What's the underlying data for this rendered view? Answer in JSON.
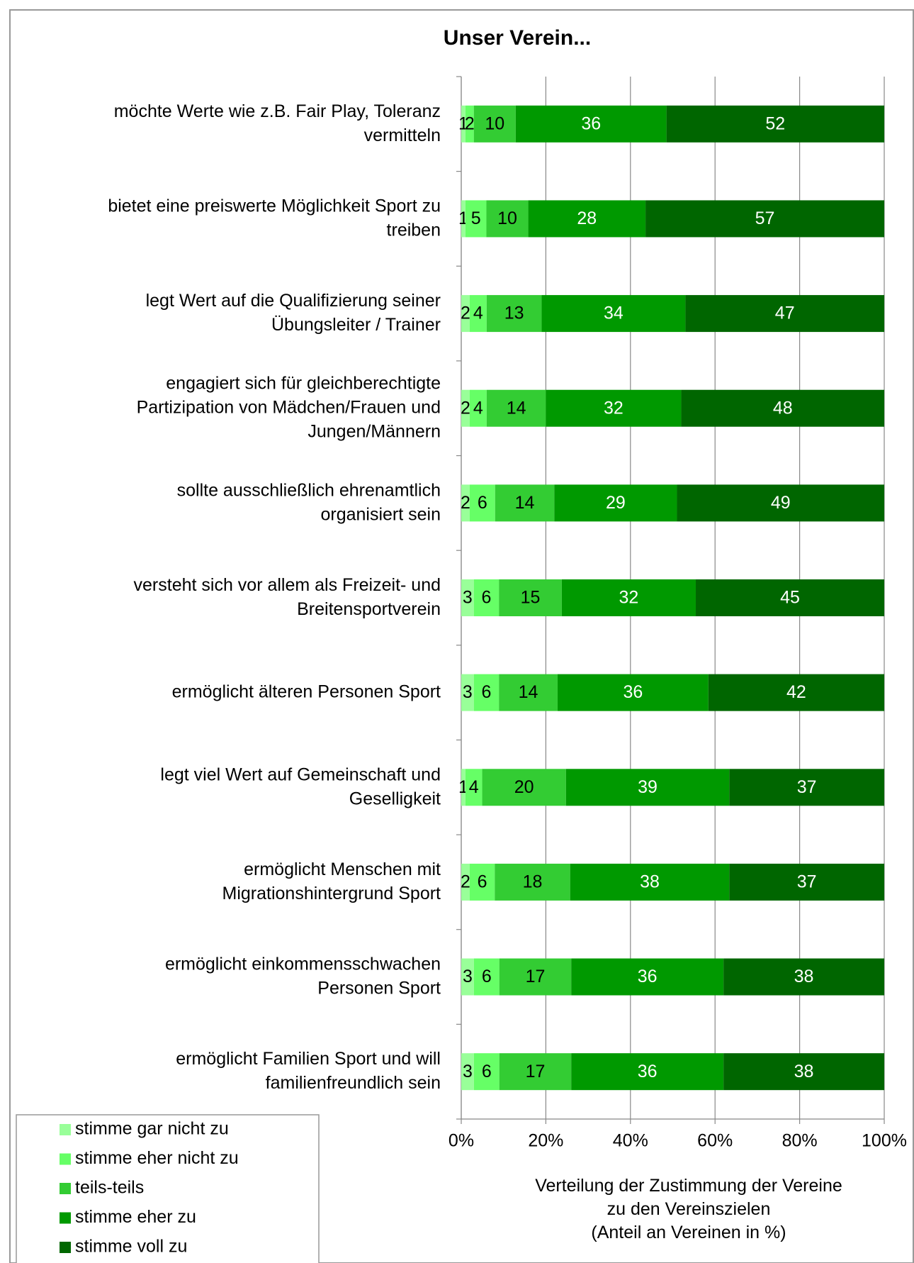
{
  "chart_data": {
    "type": "stacked_bar_100",
    "title": "Unser Verein...",
    "categories": [
      "möchte Werte wie z.B. Fair Play, Toleranz\nvermitteln",
      "bietet eine preiswerte Möglichkeit Sport zu\ntreiben",
      "legt Wert auf die Qualifizierung seiner\nÜbungsleiter / Trainer",
      "engagiert sich für gleichberechtigte\nPartizipation von Mädchen/Frauen und\nJungen/Männern",
      "sollte ausschließlich ehrenamtlich\norganisiert sein",
      "versteht sich vor allem als Freizeit- und\nBreitensportverein",
      "ermöglicht älteren Personen Sport",
      "legt viel Wert auf Gemeinschaft und\nGeselligkeit",
      "ermöglicht Menschen mit\nMigrationshintergrund Sport",
      "ermöglicht einkommensschwachen\nPersonen Sport",
      "ermöglicht Familien Sport und will\nfamilienfreundlich sein"
    ],
    "series": [
      {
        "name": "stimme gar nicht zu",
        "color": "#99ff99",
        "label_color": "#000000",
        "values": [
          1,
          1,
          2,
          2,
          2,
          3,
          3,
          1,
          2,
          3,
          3
        ]
      },
      {
        "name": "stimme eher nicht zu",
        "color": "#66ff66",
        "label_color": "#000000",
        "values": [
          2,
          5,
          4,
          4,
          6,
          6,
          6,
          4,
          6,
          6,
          6
        ]
      },
      {
        "name": "teils-teils",
        "color": "#33cc33",
        "label_color": "#000000",
        "values": [
          10,
          10,
          13,
          14,
          14,
          15,
          14,
          20,
          18,
          17,
          17
        ]
      },
      {
        "name": "stimme eher zu",
        "color": "#009900",
        "label_color": "#ffffff",
        "values": [
          36,
          28,
          34,
          32,
          29,
          32,
          36,
          39,
          38,
          36,
          36
        ]
      },
      {
        "name": "stimme voll zu",
        "color": "#006600",
        "label_color": "#ffffff",
        "values": [
          52,
          57,
          47,
          48,
          49,
          45,
          42,
          37,
          37,
          38,
          38
        ]
      }
    ],
    "xlim": [
      0,
      100
    ],
    "xticks": [
      {
        "value": 0,
        "label": "0%"
      },
      {
        "value": 20,
        "label": "20%"
      },
      {
        "value": 40,
        "label": "40%"
      },
      {
        "value": 60,
        "label": "60%"
      },
      {
        "value": 80,
        "label": "80%"
      },
      {
        "value": 100,
        "label": "100%"
      }
    ],
    "x_label": "Verteilung der Zustimmung der Vereine\nzu den Vereinszielen\n(Anteil an Vereinen in %)",
    "grid": true,
    "legend": "bottom-left"
  }
}
